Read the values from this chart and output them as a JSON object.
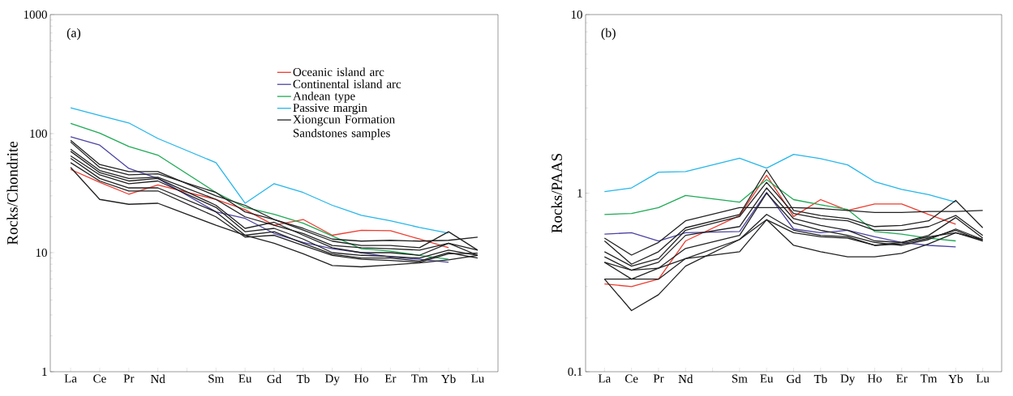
{
  "chart_data": [
    {
      "type": "line",
      "ylabel": "Rocks/Chondrite",
      "annotations": [
        "(a)"
      ],
      "log": true,
      "legend": "top right",
      "categories": [
        "La",
        "Ce",
        "Pr",
        "Nd",
        null,
        "Sm",
        "Eu",
        "Gd",
        "Tb",
        "Dy",
        "Ho",
        "Er",
        "Tm",
        "Yb",
        "Lu"
      ],
      "ylim": [
        1,
        1000
      ],
      "yticks": [
        1,
        10,
        100,
        1000
      ],
      "series": [
        {
          "name": "Oceanic island arc",
          "color": "#ee3b2f",
          "values": [
            50,
            39,
            31,
            37,
            null,
            28,
            23,
            17,
            19,
            14,
            15.4,
            15.3,
            13,
            11,
            null
          ]
        },
        {
          "name": "Continental island arc",
          "color": "#4b43a3",
          "values": [
            94,
            80,
            51,
            42,
            null,
            22,
            19.4,
            14.5,
            12.2,
            10.8,
            10,
            9.2,
            8.8,
            8.3,
            null
          ]
        },
        {
          "name": "Andean type",
          "color": "#1eaa54",
          "values": [
            122,
            101,
            78,
            66,
            null,
            32,
            24,
            21,
            17.7,
            13.8,
            10.8,
            10.3,
            9.5,
            8.8,
            null
          ]
        },
        {
          "name": "Passive margin",
          "color": "#25b6ea",
          "values": [
            165,
            142,
            123,
            91,
            null,
            57,
            26,
            38,
            32,
            25,
            20.6,
            18.5,
            16.3,
            14.6,
            null
          ]
        },
        {
          "name": "Xiongcun Formation Sandstones samples",
          "color": "#222222",
          "values": [
            88,
            55,
            48,
            48,
            null,
            30,
            25,
            19,
            16,
            13,
            12.5,
            12.7,
            12.5,
            12.7,
            13.5
          ]
        },
        {
          "color": "#222222",
          "values": [
            85,
            52,
            45,
            46,
            null,
            32,
            22,
            19,
            15.5,
            12.5,
            11.5,
            11.5,
            11,
            15,
            10.5
          ]
        },
        {
          "color": "#222222",
          "values": [
            74,
            49,
            42,
            43,
            null,
            28,
            20,
            17,
            14.5,
            11.5,
            11,
            10.8,
            10.5,
            12,
            10.5
          ]
        },
        {
          "color": "#222222",
          "values": [
            71,
            47,
            40,
            42,
            null,
            25,
            16,
            18,
            14,
            11,
            10,
            10,
            9.5,
            12,
            9.5
          ]
        },
        {
          "color": "#222222",
          "values": [
            65,
            45,
            38,
            40,
            null,
            24,
            15,
            16,
            13,
            10,
            9.5,
            9.3,
            9,
            10.5,
            9.5
          ]
        },
        {
          "color": "#222222",
          "values": [
            62,
            42,
            35,
            35,
            null,
            22,
            14,
            15,
            12,
            9.7,
            9,
            9,
            8.5,
            10,
            9
          ]
        },
        {
          "color": "#222222",
          "values": [
            57,
            40,
            33,
            33,
            null,
            20,
            13.5,
            14,
            11.5,
            9.5,
            8.8,
            8.6,
            8.3,
            9.8,
            9.9
          ]
        },
        {
          "color": "#222222",
          "values": [
            52,
            28,
            25.5,
            26,
            null,
            17,
            14,
            12,
            9.8,
            7.8,
            7.6,
            7.9,
            8.2,
            8.7,
            9.5
          ]
        }
      ]
    },
    {
      "type": "line",
      "ylabel": "Rocks/PAAS",
      "annotations": [
        "(b)"
      ],
      "log": true,
      "categories": [
        "La",
        "Ce",
        "Pr",
        "Nd",
        null,
        "Sm",
        "Eu",
        "Gd",
        "Tb",
        "Dy",
        "Ho",
        "Er",
        "Tm",
        "Yb",
        "Lu"
      ],
      "ylim": [
        0.1,
        10
      ],
      "yticks": [
        0.1,
        1,
        10
      ],
      "series": [
        {
          "color": "#ee3b2f",
          "values": [
            0.31,
            0.3,
            0.33,
            0.54,
            null,
            0.75,
            1.26,
            0.74,
            0.92,
            0.8,
            0.87,
            0.87,
            0.76,
            0.67,
            null
          ]
        },
        {
          "color": "#4b43a3",
          "values": [
            0.59,
            0.6,
            0.54,
            0.6,
            null,
            0.61,
            1.01,
            0.63,
            0.6,
            0.62,
            0.57,
            0.53,
            0.51,
            0.5,
            null
          ]
        },
        {
          "color": "#1eaa54",
          "values": [
            0.76,
            0.77,
            0.83,
            0.97,
            null,
            0.89,
            1.19,
            0.92,
            0.86,
            0.81,
            0.61,
            0.59,
            0.56,
            0.54,
            null
          ]
        },
        {
          "color": "#25b6ea",
          "values": [
            1.02,
            1.07,
            1.31,
            1.32,
            null,
            1.57,
            1.38,
            1.65,
            1.56,
            1.44,
            1.16,
            1.05,
            0.98,
            0.89,
            null
          ]
        },
        {
          "color": "#222222",
          "values": [
            0.56,
            0.45,
            0.53,
            0.7,
            null,
            0.83,
            0.83,
            0.83,
            0.82,
            0.8,
            0.78,
            0.78,
            0.79,
            0.79,
            0.8
          ]
        },
        {
          "color": "#222222",
          "values": [
            0.54,
            0.4,
            0.47,
            0.64,
            null,
            0.76,
            1.35,
            0.8,
            0.75,
            0.72,
            0.65,
            0.66,
            0.7,
            0.91,
            0.64
          ]
        },
        {
          "color": "#222222",
          "values": [
            0.47,
            0.39,
            0.43,
            0.62,
            null,
            0.74,
            1.15,
            0.77,
            0.72,
            0.7,
            0.62,
            0.62,
            0.65,
            0.75,
            0.58
          ]
        },
        {
          "color": "#222222",
          "values": [
            0.44,
            0.37,
            0.41,
            0.58,
            null,
            0.65,
            1.07,
            0.72,
            0.66,
            0.62,
            0.54,
            0.53,
            0.58,
            0.73,
            0.56
          ]
        },
        {
          "color": "#222222",
          "values": [
            0.41,
            0.37,
            0.38,
            0.49,
            null,
            0.58,
            1.0,
            0.68,
            0.62,
            0.58,
            0.53,
            0.51,
            0.55,
            0.63,
            0.55
          ]
        },
        {
          "color": "#222222",
          "values": [
            0.33,
            0.33,
            0.38,
            0.43,
            null,
            0.55,
            0.76,
            0.62,
            0.58,
            0.57,
            0.51,
            0.52,
            0.56,
            0.62,
            0.54
          ]
        },
        {
          "color": "#222222",
          "values": [
            0.33,
            0.22,
            0.27,
            0.39,
            null,
            0.55,
            0.71,
            0.6,
            0.57,
            0.56,
            0.51,
            0.53,
            0.57,
            0.6,
            0.55
          ]
        },
        {
          "color": "#222222",
          "values": [
            0.41,
            0.33,
            0.33,
            0.43,
            null,
            0.47,
            0.71,
            0.51,
            0.47,
            0.44,
            0.44,
            0.46,
            0.52,
            0.6,
            0.54
          ]
        }
      ]
    }
  ]
}
